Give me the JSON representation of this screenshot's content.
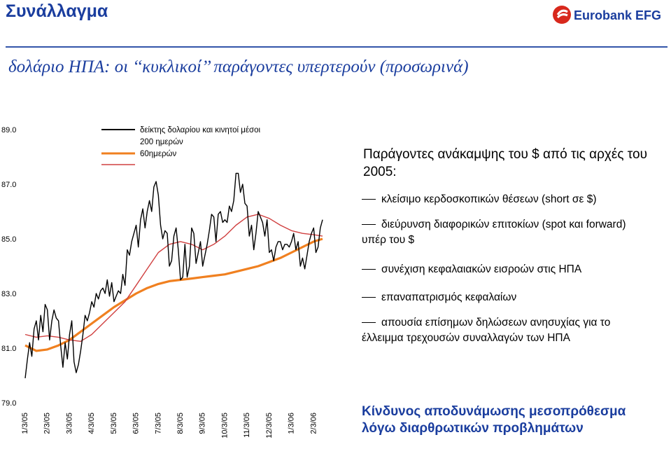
{
  "header": {
    "title": "Συνάλλαγμα",
    "logo_text": "Eurobank EFG",
    "subtitle": "δολάριο ΗΠΑ: οι ‘‘κυκλικοί’’ παράγοντες υπερτερούν (προσωρινά)"
  },
  "colors": {
    "title": "#1a3d9e",
    "logo_red": "#d8281c",
    "index_line": "#000000",
    "ma200": "#f08020",
    "ma60": "#d04040"
  },
  "panel": {
    "title": "Παράγοντες ανάκαμψης του $ από τις αρχές του 2005:",
    "bullets": [
      "κλείσιμο κερδοσκοπικών θέσεων (short σε $)",
      "διεύρυνση διαφορικών επιτοκίων (spot και forward) υπέρ του $",
      "συνέχιση κεφαλαιακών εισροών στις ΗΠΑ",
      "επαναπατρισμός κεφαλαίων",
      "απουσία επίσημων δηλώσεων ανησυχίας για το έλλειμμα τρεχουσών συναλλαγών των ΗΠΑ"
    ],
    "risk_note": "Κίνδυνος αποδυνάμωσης μεσοπρόθεσμα λόγω διαρθρωτικών προβλημάτων"
  },
  "chart_data": {
    "type": "line",
    "title": "",
    "xlabel": "",
    "ylabel": "",
    "ylim": [
      79.0,
      89.0
    ],
    "yticks": [
      "89.0",
      "87.0",
      "85.0",
      "83.0",
      "81.0",
      "79.0"
    ],
    "categories": [
      "1/3/05",
      "2/3/05",
      "3/3/05",
      "4/3/05",
      "5/3/05",
      "6/3/05",
      "7/3/05",
      "8/3/05",
      "9/3/05",
      "10/3/05",
      "11/3/05",
      "12/3/05",
      "1/3/06",
      "2/3/06"
    ],
    "legend": {
      "placement": "top-left",
      "header": "δείκτης δολαρίου και κινητοί μέσοι",
      "entries": [
        "200 ημερών",
        "60ημερών"
      ]
    },
    "series": [
      {
        "name": "δείκτης δολαρίου",
        "color": "#000000",
        "x": [
          0,
          0.1,
          0.2,
          0.3,
          0.4,
          0.5,
          0.6,
          0.7,
          0.8,
          0.9,
          1.0,
          1.1,
          1.2,
          1.3,
          1.4,
          1.5,
          1.6,
          1.7,
          1.8,
          1.9,
          2.0,
          2.1,
          2.2,
          2.3,
          2.4,
          2.5,
          2.6,
          2.7,
          2.8,
          2.9,
          3.0,
          3.1,
          3.2,
          3.3,
          3.4,
          3.5,
          3.6,
          3.7,
          3.8,
          3.9,
          4.0,
          4.1,
          4.2,
          4.3,
          4.4,
          4.5,
          4.6,
          4.7,
          4.8,
          4.9,
          5.0,
          5.1,
          5.2,
          5.3,
          5.4,
          5.5,
          5.6,
          5.7,
          5.8,
          5.9,
          6.0,
          6.1,
          6.2,
          6.3,
          6.4,
          6.5,
          6.6,
          6.7,
          6.8,
          6.9,
          7.0,
          7.1,
          7.2,
          7.3,
          7.4,
          7.5,
          7.6,
          7.7,
          7.8,
          7.9,
          8.0,
          8.1,
          8.2,
          8.3,
          8.4,
          8.5,
          8.6,
          8.7,
          8.8,
          8.9,
          9.0,
          9.1,
          9.2,
          9.3,
          9.4,
          9.5,
          9.6,
          9.7,
          9.8,
          9.9,
          10.0,
          10.1,
          10.2,
          10.3,
          10.4,
          10.5,
          10.6,
          10.7,
          10.8,
          10.9,
          11.0,
          11.1,
          11.2,
          11.3,
          11.4,
          11.5,
          11.6,
          11.7,
          11.8,
          11.9,
          12.0,
          12.1,
          12.2,
          12.3,
          12.4,
          12.5,
          12.6,
          12.7,
          12.8,
          12.9,
          13.0,
          13.1,
          13.2,
          13.3,
          13.4
        ],
        "values": [
          79.9,
          80.6,
          81.2,
          80.7,
          81.7,
          82.0,
          81.3,
          82.2,
          81.6,
          82.6,
          82.4,
          81.3,
          82.0,
          82.4,
          82.1,
          82.0,
          81.1,
          80.3,
          81.2,
          80.6,
          81.5,
          82.0,
          80.5,
          80.1,
          80.4,
          80.9,
          81.5,
          82.2,
          82.0,
          82.3,
          82.7,
          82.5,
          83.0,
          82.8,
          83.1,
          83.2,
          83.0,
          83.5,
          82.9,
          83.4,
          82.7,
          82.9,
          83.1,
          83.0,
          83.7,
          83.3,
          84.6,
          84.4,
          84.9,
          85.2,
          85.5,
          84.7,
          85.7,
          86.1,
          85.4,
          86.0,
          86.4,
          86.0,
          86.9,
          87.1,
          86.6,
          85.5,
          85.0,
          85.3,
          85.2,
          84.0,
          84.2,
          85.1,
          85.4,
          84.6,
          83.5,
          83.6,
          84.8,
          83.6,
          84.0,
          85.4,
          85.2,
          84.1,
          84.5,
          84.9,
          84.0,
          84.4,
          84.8,
          85.3,
          85.9,
          85.8,
          84.9,
          85.9,
          86.0,
          85.6,
          85.7,
          85.6,
          86.2,
          86.0,
          86.4,
          87.4,
          87.4,
          86.7,
          87.0,
          86.3,
          86.2,
          85.1,
          85.5,
          84.6,
          85.2,
          86.0,
          85.8,
          85.6,
          85.1,
          85.7,
          84.5,
          84.6,
          84.2,
          84.7,
          84.9,
          84.9,
          84.6,
          84.8,
          84.8,
          84.7,
          84.9,
          85.2,
          84.6,
          84.9,
          84.0,
          84.3,
          83.9,
          84.4,
          84.9,
          85.2,
          85.4,
          84.5,
          84.7,
          85.4,
          85.7
        ],
        "xnote": "x in months from 1/3/05"
      },
      {
        "name": "200 ημερών",
        "color": "#f08020",
        "x": [
          0,
          0.5,
          1.0,
          1.5,
          2.0,
          2.5,
          3.0,
          3.5,
          4.0,
          4.5,
          5.0,
          5.5,
          6.0,
          6.5,
          7.0,
          7.5,
          8.0,
          8.5,
          9.0,
          9.5,
          10.0,
          10.5,
          11.0,
          11.5,
          12.0,
          12.5,
          13.0,
          13.4
        ],
        "values": [
          81.1,
          80.9,
          80.95,
          81.1,
          81.3,
          81.6,
          81.9,
          82.2,
          82.5,
          82.75,
          83.0,
          83.2,
          83.35,
          83.45,
          83.5,
          83.55,
          83.6,
          83.65,
          83.7,
          83.8,
          83.9,
          84.0,
          84.15,
          84.3,
          84.5,
          84.7,
          84.9,
          85.0
        ]
      },
      {
        "name": "60ημερών",
        "color": "#d04040",
        "x": [
          0,
          0.5,
          1.0,
          1.5,
          2.0,
          2.5,
          3.0,
          3.5,
          4.0,
          4.5,
          5.0,
          5.5,
          6.0,
          6.5,
          7.0,
          7.5,
          8.0,
          8.5,
          9.0,
          9.5,
          10.0,
          10.5,
          11.0,
          11.5,
          12.0,
          12.5,
          13.0,
          13.4
        ],
        "values": [
          81.5,
          81.4,
          81.45,
          81.4,
          81.3,
          81.25,
          81.5,
          81.9,
          82.3,
          82.7,
          83.3,
          83.9,
          84.5,
          84.8,
          84.9,
          84.8,
          84.6,
          84.8,
          85.1,
          85.5,
          85.8,
          85.9,
          85.75,
          85.5,
          85.3,
          85.2,
          85.15,
          85.1
        ]
      }
    ]
  }
}
